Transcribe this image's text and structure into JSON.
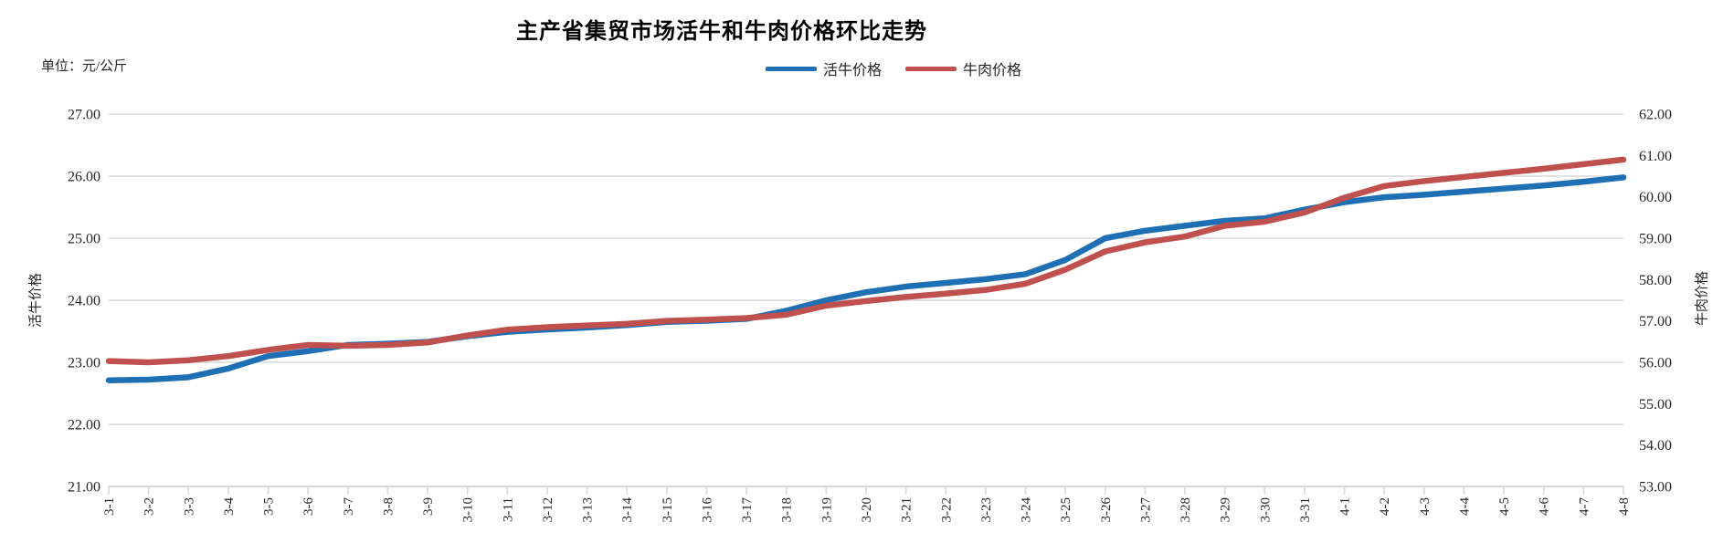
{
  "title": "主产省集贸市场活牛和牛肉价格环比走势",
  "unit_label": "单位：元/公斤",
  "legend": [
    {
      "label": "活牛价格",
      "color": "#1F6FB5"
    },
    {
      "label": "牛肉价格",
      "color": "#C0504D"
    }
  ],
  "left_axis": {
    "title": "活牛价格",
    "min": 21,
    "max": 27,
    "step": 1,
    "tick_labels": [
      "27.00",
      "26.00",
      "25.00",
      "24.00",
      "23.00",
      "22.00",
      "21.00"
    ]
  },
  "right_axis": {
    "title": "牛肉价格",
    "min": 53,
    "max": 62,
    "step": 1,
    "tick_labels": [
      "62.00",
      "61.00",
      "60.00",
      "59.00",
      "58.00",
      "57.00",
      "56.00",
      "55.00",
      "54.00",
      "53.00"
    ]
  },
  "chart_data": {
    "type": "line",
    "title": "主产省集贸市场活牛和牛肉价格环比走势",
    "grid": true,
    "grid_color": "#D9D9D9",
    "legend_position": "top",
    "left_ylim": [
      21,
      27
    ],
    "right_ylim": [
      53,
      62
    ],
    "categories": [
      "3-1",
      "3-2",
      "3-3",
      "3-4",
      "3-5",
      "3-6",
      "3-7",
      "3-8",
      "3-9",
      "3-10",
      "3-11",
      "3-12",
      "3-13",
      "3-14",
      "3-15",
      "3-16",
      "3-17",
      "3-18",
      "3-19",
      "3-20",
      "3-21",
      "3-22",
      "3-23",
      "3-24",
      "3-25",
      "3-26",
      "3-27",
      "3-28",
      "3-29",
      "3-30",
      "3-31",
      "4-1",
      "4-2",
      "4-3",
      "4-4",
      "4-5",
      "4-6",
      "4-7",
      "4-8"
    ],
    "series": [
      {
        "name": "活牛价格",
        "axis": "left",
        "color": "#1F6FB5",
        "values": [
          22.71,
          22.72,
          22.76,
          22.9,
          23.1,
          23.18,
          23.28,
          23.3,
          23.33,
          23.42,
          23.49,
          23.53,
          23.56,
          23.6,
          23.65,
          23.67,
          23.7,
          23.83,
          24.0,
          24.13,
          24.22,
          24.28,
          24.34,
          24.42,
          24.65,
          25.0,
          25.12,
          25.2,
          25.28,
          25.32,
          25.46,
          25.58,
          25.66,
          25.7,
          25.75,
          25.8,
          25.85,
          25.91,
          25.98
        ]
      },
      {
        "name": "牛肉价格",
        "axis": "right",
        "color": "#C0504D",
        "values": [
          56.03,
          56.0,
          56.05,
          56.15,
          56.3,
          56.42,
          56.4,
          56.42,
          56.48,
          56.65,
          56.79,
          56.85,
          56.89,
          56.93,
          57.0,
          57.03,
          57.07,
          57.15,
          57.37,
          57.48,
          57.58,
          57.66,
          57.75,
          57.9,
          58.24,
          58.68,
          58.9,
          59.04,
          59.3,
          59.4,
          59.62,
          59.98,
          60.26,
          60.38,
          60.48,
          60.58,
          60.68,
          60.79,
          60.9
        ]
      }
    ]
  }
}
